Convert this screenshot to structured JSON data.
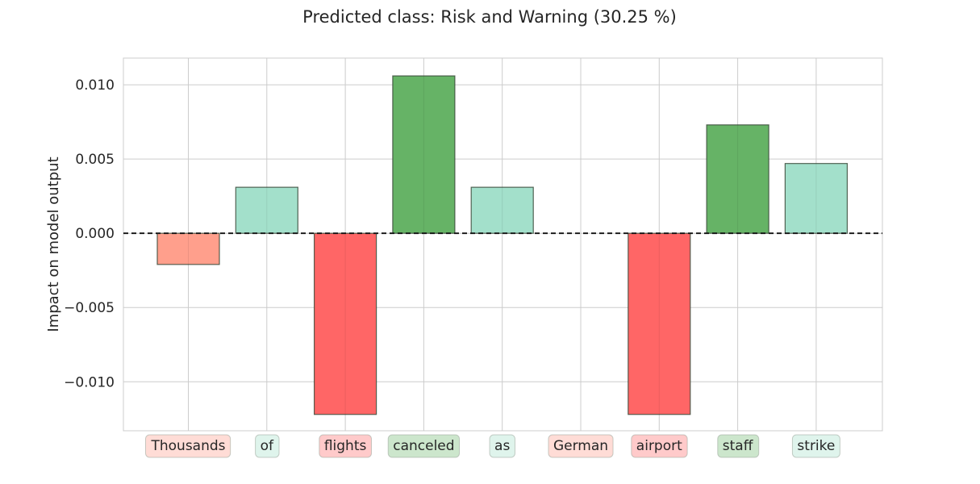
{
  "chart_data": {
    "type": "bar",
    "title": "Predicted class: Risk and Warning (30.25 %)",
    "xlabel": "",
    "ylabel": "Impact on model output",
    "ylim": [
      -0.0133,
      0.0118
    ],
    "yticks": [
      {
        "value": 0.01,
        "label": "0.010"
      },
      {
        "value": 0.005,
        "label": "0.005"
      },
      {
        "value": 0.0,
        "label": "0.000"
      },
      {
        "value": -0.005,
        "label": "−0.005"
      },
      {
        "value": -0.01,
        "label": "−0.010"
      }
    ],
    "grid": true,
    "zero_line": "dashed",
    "categories": [
      "Thousands",
      "of",
      "flights",
      "canceled",
      "as",
      "German",
      "airport",
      "staff",
      "strike"
    ],
    "values": [
      -0.0021,
      0.0031,
      -0.0122,
      0.0106,
      0.0031,
      0.0,
      -0.0122,
      0.0073,
      0.0047
    ],
    "bar_colors": [
      "#ff9f8c",
      "#a3e0cb",
      "#ff6666",
      "#66b366",
      "#a3e0cb",
      "#ffdbd6",
      "#ff6666",
      "#66b366",
      "#a3e0cb"
    ],
    "label_box_colors": [
      "#ffdcd6",
      "#dff4ec",
      "#ffcaca",
      "#cce6cc",
      "#dff4ec",
      "#ffdcd6",
      "#ffcaca",
      "#cce6cc",
      "#dff4ec"
    ]
  }
}
